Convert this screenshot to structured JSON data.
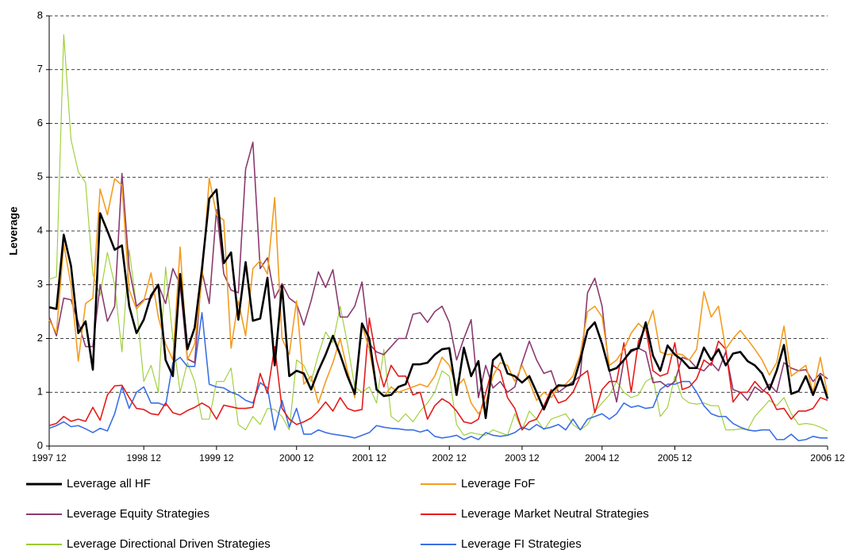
{
  "chart_data": {
    "type": "line",
    "y_label": "Leverage",
    "categories": [
      "1997 12",
      null,
      null,
      null,
      null,
      null,
      null,
      null,
      null,
      null,
      null,
      null,
      null,
      "1998 12",
      null,
      null,
      null,
      null,
      null,
      null,
      null,
      null,
      null,
      "1999 12",
      null,
      null,
      null,
      null,
      null,
      null,
      null,
      null,
      null,
      null,
      "2000 12",
      null,
      null,
      null,
      null,
      null,
      null,
      null,
      null,
      null,
      "2001 12",
      null,
      null,
      null,
      null,
      null,
      null,
      null,
      null,
      null,
      null,
      "2002 12",
      null,
      null,
      null,
      null,
      null,
      null,
      null,
      null,
      null,
      "2003 12",
      null,
      null,
      null,
      null,
      null,
      null,
      null,
      null,
      null,
      null,
      "2004 12",
      null,
      null,
      null,
      null,
      null,
      null,
      null,
      null,
      null,
      "2005 12",
      null,
      null,
      null,
      null,
      null,
      null,
      null,
      null,
      null,
      null,
      null,
      null,
      null,
      null,
      null,
      null,
      null,
      null,
      null,
      null,
      "2006 12"
    ],
    "ylim": [
      0,
      8
    ],
    "yticks": [
      0,
      1,
      2,
      3,
      4,
      5,
      6,
      7,
      8
    ],
    "grid": true,
    "legend": "bottom",
    "series": [
      {
        "name": "Leverage all HF",
        "color": "#000000",
        "values": [
          2.58,
          2.55,
          3.93,
          3.35,
          2.1,
          2.32,
          1.42,
          4.33,
          4.0,
          3.65,
          3.73,
          2.6,
          2.1,
          2.35,
          2.8,
          3.0,
          1.6,
          1.3,
          3.2,
          1.8,
          2.2,
          3.3,
          4.6,
          4.77,
          3.4,
          3.6,
          2.35,
          3.42,
          2.33,
          2.37,
          3.13,
          1.5,
          2.98,
          1.3,
          1.4,
          1.35,
          1.05,
          1.4,
          1.7,
          2.05,
          1.7,
          1.3,
          0.97,
          2.28,
          2.0,
          1.05,
          0.93,
          0.95,
          1.1,
          1.15,
          1.52,
          1.52,
          1.55,
          1.7,
          1.8,
          1.82,
          0.95,
          1.83,
          1.3,
          1.58,
          0.52,
          1.6,
          1.72,
          1.35,
          1.3,
          1.18,
          1.3,
          1.0,
          0.68,
          1.0,
          1.13,
          1.12,
          1.15,
          1.6,
          2.15,
          2.3,
          1.9,
          1.4,
          1.45,
          1.6,
          1.78,
          1.82,
          2.3,
          1.68,
          1.4,
          1.87,
          1.7,
          1.6,
          1.45,
          1.45,
          1.83,
          1.6,
          1.8,
          1.5,
          1.72,
          1.75,
          1.58,
          1.5,
          1.35,
          1.05,
          1.4,
          1.88,
          0.97,
          1.02,
          1.3,
          0.95,
          1.3,
          0.88
        ]
      },
      {
        "name": "Leverage FoF",
        "color": "#f39c1f",
        "values": [
          2.35,
          2.1,
          3.75,
          3.0,
          1.58,
          2.65,
          2.75,
          4.78,
          4.3,
          4.97,
          4.85,
          2.9,
          2.55,
          2.7,
          3.22,
          2.4,
          1.9,
          1.6,
          3.7,
          1.6,
          1.9,
          3.1,
          4.98,
          4.3,
          4.2,
          1.82,
          2.7,
          2.05,
          3.3,
          3.45,
          3.2,
          4.62,
          2.0,
          1.7,
          2.7,
          1.15,
          1.3,
          0.8,
          1.2,
          1.55,
          2.0,
          1.4,
          0.9,
          2.25,
          1.8,
          1.05,
          0.92,
          1.1,
          1.0,
          1.05,
          1.1,
          1.15,
          1.1,
          1.3,
          1.65,
          1.5,
          1.1,
          1.25,
          0.8,
          0.6,
          0.8,
          1.3,
          1.55,
          1.5,
          1.2,
          1.5,
          1.2,
          0.85,
          1.0,
          0.9,
          1.1,
          1.15,
          1.3,
          1.7,
          2.5,
          2.6,
          2.4,
          1.5,
          1.6,
          1.8,
          2.1,
          2.28,
          2.15,
          2.52,
          1.75,
          1.7,
          1.72,
          1.7,
          1.6,
          1.8,
          2.87,
          2.4,
          2.6,
          1.8,
          2.0,
          2.15,
          1.98,
          1.8,
          1.6,
          1.32,
          1.55,
          2.23,
          1.3,
          1.4,
          1.5,
          1.0,
          1.65,
          0.95
        ]
      },
      {
        "name": "Leverage Equity Strategies",
        "color": "#8b3a6f",
        "values": [
          2.4,
          2.05,
          2.75,
          2.72,
          2.3,
          1.85,
          1.85,
          3.0,
          2.32,
          2.6,
          5.07,
          3.3,
          2.6,
          2.72,
          2.75,
          3.0,
          2.65,
          3.3,
          3.0,
          1.62,
          1.55,
          3.25,
          2.65,
          4.4,
          3.2,
          2.9,
          2.85,
          5.15,
          5.65,
          3.3,
          3.5,
          2.75,
          3.02,
          2.75,
          2.65,
          2.25,
          2.7,
          3.24,
          2.95,
          3.28,
          2.4,
          2.4,
          2.6,
          3.05,
          1.9,
          1.75,
          1.7,
          1.85,
          2.0,
          2.0,
          2.45,
          2.48,
          2.3,
          2.5,
          2.6,
          2.3,
          1.6,
          2.0,
          2.35,
          0.9,
          1.5,
          1.08,
          1.2,
          1.0,
          1.1,
          1.55,
          1.95,
          1.6,
          1.35,
          1.4,
          1.0,
          1.1,
          1.2,
          1.3,
          2.85,
          3.12,
          2.6,
          1.4,
          0.82,
          1.6,
          1.75,
          1.82,
          1.75,
          1.18,
          1.2,
          1.1,
          1.2,
          1.65,
          1.6,
          1.45,
          1.4,
          1.55,
          1.4,
          1.75,
          1.05,
          1.0,
          0.85,
          1.1,
          1.0,
          1.15,
          1.0,
          1.55,
          1.45,
          1.4,
          1.42,
          1.2,
          1.35,
          1.25
        ]
      },
      {
        "name": "Leverage Market Neutral Strategies",
        "color": "#e41b1b",
        "values": [
          0.38,
          0.42,
          0.55,
          0.46,
          0.5,
          0.46,
          0.72,
          0.48,
          0.95,
          1.12,
          1.13,
          0.9,
          0.7,
          0.68,
          0.6,
          0.58,
          0.8,
          0.62,
          0.58,
          0.66,
          0.72,
          0.8,
          0.72,
          0.5,
          0.76,
          0.73,
          0.7,
          0.7,
          0.72,
          1.35,
          0.98,
          1.85,
          0.7,
          0.5,
          0.4,
          0.45,
          0.52,
          0.65,
          0.82,
          0.65,
          0.9,
          0.7,
          0.65,
          0.68,
          2.38,
          1.6,
          1.1,
          1.5,
          1.3,
          1.3,
          0.95,
          1.0,
          0.5,
          0.75,
          0.88,
          0.8,
          0.65,
          0.45,
          0.42,
          0.5,
          0.98,
          1.5,
          1.4,
          0.9,
          0.7,
          0.3,
          0.45,
          0.5,
          0.75,
          1.05,
          0.8,
          0.85,
          1.0,
          1.3,
          1.4,
          0.62,
          1.05,
          1.2,
          1.2,
          1.92,
          1.0,
          1.95,
          2.2,
          1.4,
          1.3,
          1.35,
          1.92,
          1.05,
          1.1,
          1.25,
          1.6,
          1.5,
          1.95,
          1.8,
          0.82,
          1.0,
          1.0,
          1.2,
          1.05,
          0.95,
          0.68,
          0.7,
          0.5,
          0.65,
          0.65,
          0.7,
          0.9,
          0.85
        ]
      },
      {
        "name": "Leverage Directional Driven Strategies",
        "color": "#9acd32",
        "values": [
          3.1,
          3.15,
          7.65,
          5.7,
          5.1,
          4.9,
          3.2,
          2.8,
          3.6,
          3.0,
          1.75,
          3.65,
          2.6,
          1.2,
          1.5,
          1.0,
          3.33,
          2.0,
          1.0,
          1.55,
          1.2,
          0.5,
          0.5,
          1.2,
          1.2,
          1.45,
          0.4,
          0.3,
          0.55,
          0.4,
          0.7,
          0.68,
          0.55,
          0.3,
          1.6,
          1.5,
          1.2,
          1.7,
          2.12,
          1.92,
          2.6,
          1.9,
          1.1,
          1.0,
          1.1,
          0.8,
          1.8,
          0.55,
          0.45,
          0.6,
          0.45,
          0.65,
          0.8,
          1.0,
          1.4,
          1.3,
          0.4,
          0.2,
          0.25,
          0.22,
          0.2,
          0.3,
          0.25,
          0.2,
          0.6,
          0.3,
          0.65,
          0.5,
          0.3,
          0.5,
          0.55,
          0.6,
          0.4,
          0.3,
          0.4,
          0.65,
          0.8,
          0.95,
          1.2,
          1.0,
          0.9,
          0.95,
          1.2,
          1.28,
          0.55,
          0.72,
          1.3,
          0.9,
          0.8,
          0.78,
          0.8,
          0.75,
          0.75,
          0.3,
          0.3,
          0.32,
          0.3,
          0.55,
          0.7,
          0.85,
          0.75,
          0.9,
          0.6,
          0.4,
          0.42,
          0.4,
          0.35,
          0.28
        ]
      },
      {
        "name": "Leverage FI Strategies",
        "color": "#3a6fe6",
        "values": [
          0.33,
          0.38,
          0.45,
          0.36,
          0.38,
          0.32,
          0.25,
          0.33,
          0.28,
          0.6,
          1.1,
          0.7,
          1.0,
          1.1,
          0.8,
          0.8,
          0.75,
          1.55,
          1.65,
          1.48,
          1.48,
          2.48,
          1.15,
          1.1,
          1.08,
          1.0,
          0.95,
          0.85,
          0.8,
          1.18,
          1.08,
          0.3,
          0.85,
          0.35,
          0.7,
          0.22,
          0.22,
          0.3,
          0.25,
          0.22,
          0.2,
          0.18,
          0.15,
          0.2,
          0.25,
          0.38,
          0.35,
          0.33,
          0.32,
          0.3,
          0.3,
          0.26,
          0.3,
          0.18,
          0.15,
          0.17,
          0.2,
          0.12,
          0.18,
          0.12,
          0.25,
          0.2,
          0.18,
          0.2,
          0.25,
          0.35,
          0.3,
          0.4,
          0.32,
          0.35,
          0.4,
          0.3,
          0.5,
          0.3,
          0.5,
          0.55,
          0.6,
          0.5,
          0.6,
          0.8,
          0.72,
          0.75,
          0.7,
          0.72,
          1.05,
          1.15,
          1.15,
          1.2,
          1.2,
          1.0,
          0.75,
          0.6,
          0.55,
          0.55,
          0.42,
          0.35,
          0.3,
          0.28,
          0.3,
          0.3,
          0.12,
          0.12,
          0.22,
          0.1,
          0.12,
          0.18,
          0.15,
          0.15
        ]
      }
    ]
  }
}
